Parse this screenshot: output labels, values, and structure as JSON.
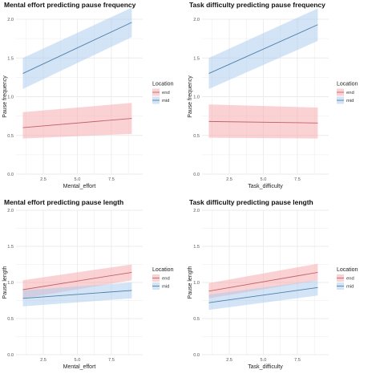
{
  "colors": {
    "end_line": "#c1626a",
    "end_fill": "#f8a5aa",
    "mid_line": "#4f7fa6",
    "mid_fill": "#a8c9ee",
    "grid": "#ebebeb"
  },
  "chart_data": [
    {
      "type": "line",
      "title": "Mental effort predicting pause frequency",
      "xlabel": "Mental_effort",
      "ylabel": "Pause frequency",
      "xlim": [
        0.5,
        9.8
      ],
      "ylim": [
        0,
        2.0
      ],
      "x_ticks": [
        2.5,
        5.0,
        7.5
      ],
      "x_tick_labels": [
        "2.5",
        "5.0",
        "7.5"
      ],
      "y_ticks": [
        0,
        0.5,
        1.0,
        1.5,
        2.0
      ],
      "y_tick_labels": [
        "0.0",
        "0.5",
        "1.0",
        "1.5",
        "2.0"
      ],
      "grid": true,
      "legend": {
        "title": "Location",
        "position": "right",
        "entries": [
          "end",
          "mid"
        ]
      },
      "series": [
        {
          "name": "end",
          "x": [
            1,
            9
          ],
          "y": [
            0.6,
            0.72
          ],
          "lower": [
            0.46,
            0.52
          ],
          "upper": [
            0.8,
            0.92
          ]
        },
        {
          "name": "mid",
          "x": [
            1,
            9
          ],
          "y": [
            1.3,
            1.96
          ],
          "lower": [
            1.1,
            1.77
          ],
          "upper": [
            1.5,
            2.15
          ]
        }
      ]
    },
    {
      "type": "line",
      "title": "Task difficulty predicting pause frequency",
      "xlabel": "Task_difficulty",
      "ylabel": "Pause frequency",
      "xlim": [
        0.5,
        9.8
      ],
      "ylim": [
        0,
        2.0
      ],
      "x_ticks": [
        2.5,
        5.0,
        7.5
      ],
      "x_tick_labels": [
        "2.5",
        "5.0",
        "7.5"
      ],
      "y_ticks": [
        0,
        0.5,
        1.0,
        1.5,
        2.0
      ],
      "y_tick_labels": [
        "0.0",
        "0.5",
        "1.0",
        "1.5",
        "2.0"
      ],
      "grid": true,
      "legend": {
        "title": "Location",
        "position": "right",
        "entries": [
          "end",
          "mid"
        ]
      },
      "series": [
        {
          "name": "end",
          "x": [
            1,
            9
          ],
          "y": [
            0.68,
            0.66
          ],
          "lower": [
            0.47,
            0.46
          ],
          "upper": [
            0.9,
            0.86
          ]
        },
        {
          "name": "mid",
          "x": [
            1,
            9
          ],
          "y": [
            1.3,
            1.93
          ],
          "lower": [
            1.1,
            1.72
          ],
          "upper": [
            1.5,
            2.14
          ]
        }
      ]
    },
    {
      "type": "line",
      "title": "Mental effort predicting pause length",
      "xlabel": "Mental_effort",
      "ylabel": "Pause length",
      "xlim": [
        0.5,
        9.8
      ],
      "ylim": [
        0,
        2.0
      ],
      "x_ticks": [
        2.5,
        5.0,
        7.5
      ],
      "x_tick_labels": [
        "2.5",
        "5.0",
        "7.5"
      ],
      "y_ticks": [
        0,
        0.5,
        1.0,
        1.5,
        2.0
      ],
      "y_tick_labels": [
        "0.0",
        "0.5",
        "1.0",
        "1.5",
        "2.0"
      ],
      "grid": true,
      "legend": {
        "title": "Location",
        "position": "right",
        "entries": [
          "end",
          "mid"
        ]
      },
      "series": [
        {
          "name": "end",
          "x": [
            1,
            9
          ],
          "y": [
            0.9,
            1.14
          ],
          "lower": [
            0.78,
            1.03
          ],
          "upper": [
            1.03,
            1.25
          ]
        },
        {
          "name": "mid",
          "x": [
            1,
            9
          ],
          "y": [
            0.78,
            0.89
          ],
          "lower": [
            0.67,
            0.78
          ],
          "upper": [
            0.89,
            1.0
          ]
        }
      ]
    },
    {
      "type": "line",
      "title": "Task difficulty predicting pause length",
      "xlabel": "Task_difficulty",
      "ylabel": "Pause length",
      "xlim": [
        0.5,
        9.8
      ],
      "ylim": [
        0,
        2.0
      ],
      "x_ticks": [
        2.5,
        5.0,
        7.5
      ],
      "x_tick_labels": [
        "2.5",
        "5.0",
        "7.5"
      ],
      "y_ticks": [
        0,
        0.5,
        1.0,
        1.5,
        2.0
      ],
      "y_tick_labels": [
        "0.0",
        "0.5",
        "1.0",
        "1.5",
        "2.0"
      ],
      "grid": true,
      "legend": {
        "title": "Location",
        "position": "right",
        "entries": [
          "end",
          "mid"
        ]
      },
      "series": [
        {
          "name": "end",
          "x": [
            1,
            9
          ],
          "y": [
            0.88,
            1.14
          ],
          "lower": [
            0.78,
            1.03
          ],
          "upper": [
            0.99,
            1.26
          ]
        },
        {
          "name": "mid",
          "x": [
            1,
            9
          ],
          "y": [
            0.72,
            0.93
          ],
          "lower": [
            0.62,
            0.82
          ],
          "upper": [
            0.83,
            1.03
          ]
        }
      ]
    }
  ]
}
